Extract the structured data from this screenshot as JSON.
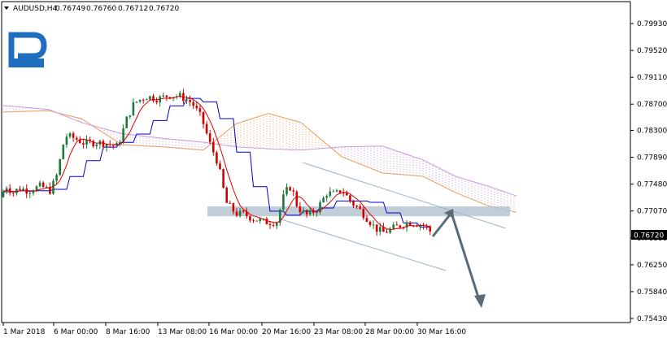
{
  "header": {
    "symbol_timeframe": "AUDUSD,H4",
    "ohlc": [
      "0.76749",
      "0.76760",
      "0.76712",
      "0.76720"
    ]
  },
  "chart_data": {
    "type": "candlestick",
    "symbol": "AUDUSD",
    "timeframe": "H4",
    "open": 0.76749,
    "high": 0.7676,
    "low": 0.76712,
    "close": 0.7672,
    "current_price": "0.76720",
    "ylim": [
      0.753,
      0.801
    ],
    "y_tick_labels": [
      "0.79930",
      "0.79520",
      "0.79110",
      "0.78700",
      "0.78300",
      "0.77890",
      "0.77480",
      "0.77070",
      "0.76660",
      "0.76250",
      "0.75840",
      "0.75430"
    ],
    "x_tick_labels": [
      "1 Mar 2018",
      "6 Mar 00:00",
      "8 Mar 16:00",
      "13 Mar 08:00",
      "16 Mar 00:00",
      "20 Mar 16:00",
      "23 Mar 08:00",
      "28 Mar 00:00",
      "30 Mar 16:00"
    ],
    "support_resistance_zone": [
      0.7699,
      0.7714
    ],
    "indicators": [
      "Ichimoku Kinko Hyo"
    ],
    "colors": {
      "bull": "#1e7a3c",
      "bear": "#d40000",
      "tenkan": "#dd0000",
      "kijun": "#0000cc",
      "cloud_a": "#e8a060",
      "cloud_b": "#c89ad8",
      "zone": "#b6c4d0",
      "arrow": "#5a6b78",
      "channel": "#9ab4cc",
      "logo": "#1f6fbf"
    }
  }
}
